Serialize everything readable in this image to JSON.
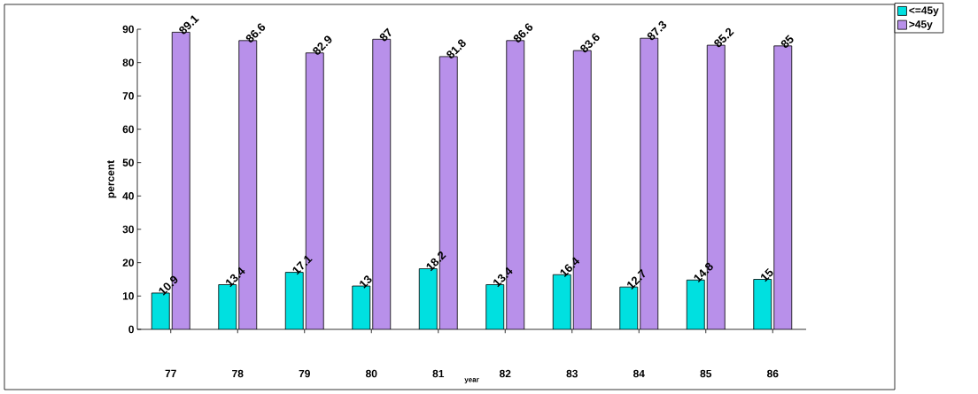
{
  "chart_data": {
    "type": "bar",
    "xlabel": "year",
    "ylabel": "percent",
    "categories": [
      "77",
      "78",
      "79",
      "80",
      "81",
      "82",
      "83",
      "84",
      "85",
      "86"
    ],
    "series": [
      {
        "name": "<=45y",
        "color": "#00e0e0",
        "values": [
          10.9,
          13.4,
          17.1,
          13,
          18.2,
          13.4,
          16.4,
          12.7,
          14.8,
          15
        ]
      },
      {
        "name": ">45y",
        "color": "#b890ea",
        "values": [
          89.1,
          86.6,
          82.9,
          87,
          81.8,
          86.6,
          83.6,
          87.3,
          85.2,
          85
        ]
      }
    ],
    "ylim": [
      0,
      90
    ],
    "yticks": [
      0,
      10,
      20,
      30,
      40,
      50,
      60,
      70,
      80,
      90
    ],
    "data_labels": true,
    "legend": "top right",
    "grid": false
  }
}
